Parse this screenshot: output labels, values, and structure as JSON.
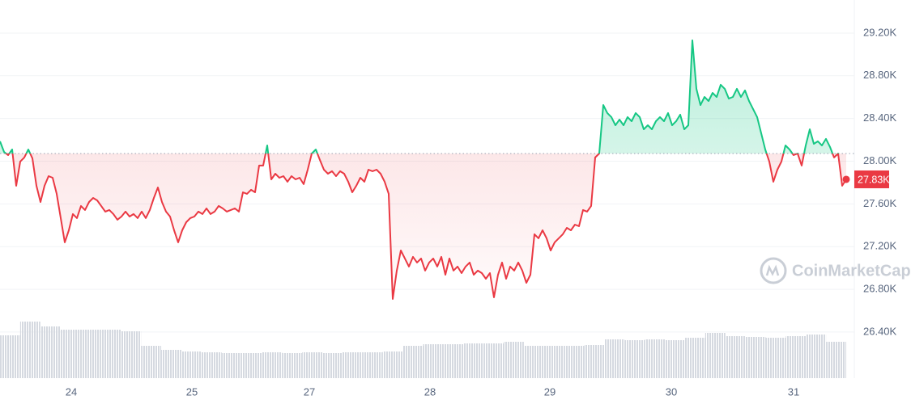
{
  "chart_data": {
    "type": "line",
    "color_up": "#16c784",
    "color_down": "#ea3943",
    "baseline": 28072,
    "values": [
      28186,
      28087,
      28057,
      28110,
      27770,
      27997,
      28035,
      28110,
      28027,
      27770,
      27618,
      27770,
      27860,
      27845,
      27694,
      27467,
      27240,
      27353,
      27505,
      27467,
      27581,
      27543,
      27618,
      27656,
      27633,
      27581,
      27528,
      27543,
      27505,
      27452,
      27482,
      27528,
      27482,
      27505,
      27467,
      27528,
      27467,
      27543,
      27656,
      27754,
      27618,
      27528,
      27482,
      27353,
      27240,
      27353,
      27429,
      27467,
      27482,
      27528,
      27505,
      27558,
      27505,
      27528,
      27581,
      27558,
      27528,
      27543,
      27558,
      27528,
      27709,
      27694,
      27732,
      27709,
      27959,
      27959,
      28148,
      27830,
      27883,
      27845,
      27860,
      27808,
      27860,
      27830,
      27845,
      27785,
      27921,
      28072,
      28110,
      28012,
      27921,
      27883,
      27906,
      27860,
      27906,
      27883,
      27808,
      27709,
      27770,
      27845,
      27808,
      27921,
      27906,
      27921,
      27883,
      27808,
      27694,
      26710,
      26975,
      27164,
      27089,
      27013,
      27104,
      27051,
      27089,
      26975,
      27051,
      27089,
      27013,
      27104,
      26937,
      27089,
      26975,
      27013,
      26952,
      27013,
      27051,
      26937,
      26975,
      26952,
      26899,
      26952,
      26725,
      26937,
      27051,
      26899,
      27013,
      26975,
      27051,
      26975,
      26861,
      26937,
      27316,
      27278,
      27353,
      27278,
      27164,
      27240,
      27278,
      27316,
      27376,
      27353,
      27406,
      27391,
      27543,
      27528,
      27581,
      28035,
      28072,
      28526,
      28451,
      28413,
      28337,
      28390,
      28337,
      28413,
      28375,
      28451,
      28413,
      28299,
      28337,
      28299,
      28375,
      28413,
      28375,
      28451,
      28337,
      28375,
      28436,
      28299,
      28337,
      29132,
      28678,
      28526,
      28602,
      28564,
      28640,
      28602,
      28716,
      28678,
      28587,
      28602,
      28678,
      28602,
      28663,
      28564,
      28489,
      28413,
      28262,
      28110,
      27997,
      27808,
      27921,
      27997,
      28148,
      28110,
      28057,
      28072,
      27959,
      28148,
      28299,
      28163,
      28186,
      28148,
      28209,
      28133,
      28035,
      28072,
      27770,
      27830
    ],
    "volume": {
      "color": "#d5d9e0",
      "values": [
        53,
        70,
        64,
        60,
        60,
        60,
        58,
        40,
        35,
        33,
        32,
        31,
        31,
        32,
        31,
        32,
        31,
        32,
        32,
        33,
        40,
        42,
        42,
        43,
        43,
        45,
        40,
        40,
        40,
        41,
        48,
        47,
        48,
        47,
        50,
        56,
        52,
        51,
        50,
        52,
        54,
        45
      ],
      "lim": [
        0,
        100
      ]
    },
    "xlim": [
      0,
      209
    ],
    "xticks": [
      {
        "value": 17.6,
        "label": "24"
      },
      {
        "value": 47.4,
        "label": "25"
      },
      {
        "value": 76.4,
        "label": "27"
      },
      {
        "value": 106.2,
        "label": "28"
      },
      {
        "value": 135.8,
        "label": "29"
      },
      {
        "value": 165.8,
        "label": "30"
      },
      {
        "value": 196,
        "label": "31"
      }
    ],
    "ylim": [
      25968,
      29510
    ],
    "yticks": [
      {
        "value": 26400,
        "label": "26.40K"
      },
      {
        "value": 26800,
        "label": "26.80K"
      },
      {
        "value": 27200,
        "label": "27.20K"
      },
      {
        "value": 27600,
        "label": "27.60K"
      },
      {
        "value": 28000,
        "label": "28.00K"
      },
      {
        "value": 28400,
        "label": "28.40K"
      },
      {
        "value": 28800,
        "label": "28.80K"
      },
      {
        "value": 29200,
        "label": "29.20K"
      }
    ],
    "grid": true,
    "price_tag": {
      "value": 27830,
      "label": "27.83K"
    },
    "watermark": "CoinMarketCap"
  }
}
